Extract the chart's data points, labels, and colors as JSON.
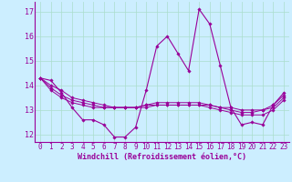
{
  "xlabel": "Windchill (Refroidissement éolien,°C)",
  "background_color": "#cceeff",
  "grid_color": "#aaddcc",
  "line_color": "#990099",
  "xlim": [
    -0.5,
    23.5
  ],
  "ylim": [
    11.7,
    17.4
  ],
  "yticks": [
    12,
    13,
    14,
    15,
    16,
    17
  ],
  "xticks": [
    0,
    1,
    2,
    3,
    4,
    5,
    6,
    7,
    8,
    9,
    10,
    11,
    12,
    13,
    14,
    15,
    16,
    17,
    18,
    19,
    20,
    21,
    22,
    23
  ],
  "line1_x": [
    0,
    1,
    2,
    3,
    4,
    5,
    6,
    7,
    8,
    9,
    10,
    11,
    12,
    13,
    14,
    15,
    16,
    17,
    18,
    19,
    20,
    21,
    22,
    23
  ],
  "line1_y": [
    14.3,
    14.2,
    13.7,
    13.1,
    12.6,
    12.6,
    12.4,
    11.9,
    11.9,
    12.3,
    13.8,
    15.6,
    16.0,
    15.3,
    14.6,
    17.1,
    16.5,
    14.8,
    13.1,
    12.4,
    12.5,
    12.4,
    13.2,
    13.7
  ],
  "line2_x": [
    0,
    1,
    2,
    3,
    4,
    5,
    6,
    7,
    8,
    9,
    10,
    11,
    12,
    13,
    14,
    15,
    16,
    17,
    18,
    19,
    20,
    21,
    22,
    23
  ],
  "line2_y": [
    14.3,
    13.8,
    13.5,
    13.3,
    13.2,
    13.1,
    13.1,
    13.1,
    13.1,
    13.1,
    13.2,
    13.2,
    13.2,
    13.2,
    13.2,
    13.2,
    13.2,
    13.1,
    13.1,
    13.0,
    13.0,
    13.0,
    13.2,
    13.6
  ],
  "line3_x": [
    0,
    1,
    2,
    3,
    4,
    5,
    6,
    7,
    8,
    9,
    10,
    11,
    12,
    13,
    14,
    15,
    16,
    17,
    18,
    19,
    20,
    21,
    22,
    23
  ],
  "line3_y": [
    14.3,
    13.9,
    13.6,
    13.4,
    13.3,
    13.2,
    13.1,
    13.1,
    13.1,
    13.1,
    13.2,
    13.3,
    13.3,
    13.3,
    13.3,
    13.3,
    13.2,
    13.1,
    13.0,
    12.9,
    12.9,
    13.0,
    13.1,
    13.5
  ],
  "line4_x": [
    0,
    1,
    2,
    3,
    4,
    5,
    6,
    7,
    8,
    9,
    10,
    11,
    12,
    13,
    14,
    15,
    16,
    17,
    18,
    19,
    20,
    21,
    22,
    23
  ],
  "line4_y": [
    14.3,
    14.0,
    13.8,
    13.5,
    13.4,
    13.3,
    13.2,
    13.1,
    13.1,
    13.1,
    13.1,
    13.2,
    13.2,
    13.2,
    13.2,
    13.2,
    13.1,
    13.0,
    12.9,
    12.8,
    12.8,
    12.8,
    13.0,
    13.4
  ],
  "xlabel_fontsize": 6,
  "tick_fontsize": 5.5,
  "ytick_fontsize": 6
}
